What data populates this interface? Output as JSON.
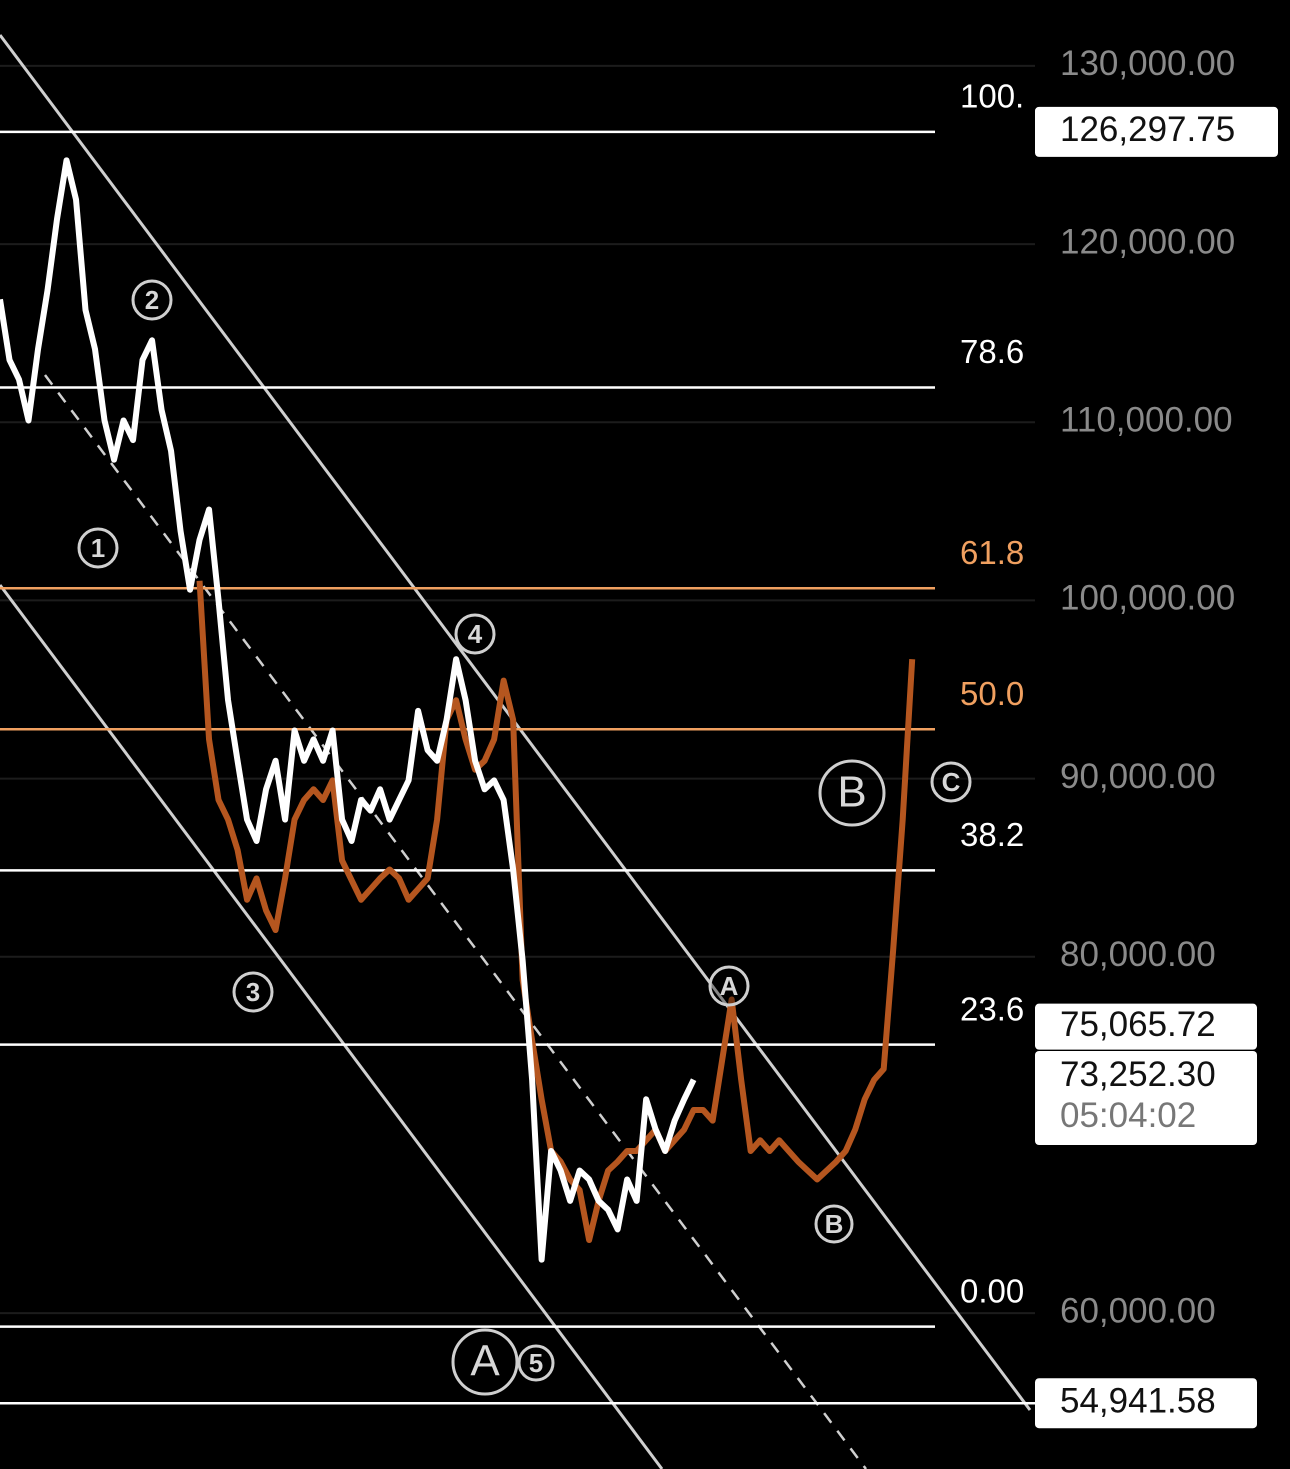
{
  "chart_data": {
    "type": "line",
    "ylim": [
      51250,
      133700
    ],
    "xlim": [
      0,
      98.4
    ],
    "grid": true,
    "yticks": [
      {
        "value": 130000,
        "label": "130,000.00"
      },
      {
        "value": 120000,
        "label": "120,000.00"
      },
      {
        "value": 110000,
        "label": "110,000.00"
      },
      {
        "value": 100000,
        "label": "100,000.00"
      },
      {
        "value": 90000,
        "label": "90,000.00"
      },
      {
        "value": 80000,
        "label": "80,000.00"
      },
      {
        "value": 60000,
        "label": "60,000.00"
      }
    ],
    "series": [
      {
        "color": "#ffffff",
        "x": [
          0,
          1,
          2,
          3,
          4,
          5,
          6,
          7,
          8,
          9,
          10,
          11,
          12,
          13,
          14,
          15,
          16,
          17,
          18,
          19,
          20,
          21,
          22,
          23,
          24,
          25,
          26,
          27,
          28,
          29,
          30,
          31,
          32,
          33,
          34,
          35,
          36,
          37,
          38,
          39,
          40,
          41,
          42,
          43,
          44,
          45,
          46,
          47,
          48,
          49,
          50,
          51,
          52,
          53,
          54,
          55,
          56,
          57,
          58,
          59,
          60,
          61,
          62,
          63,
          64,
          65,
          66,
          67,
          68,
          69,
          70,
          71,
          72,
          73
        ],
        "values": [
          116900,
          113500,
          112400,
          110100,
          114100,
          117400,
          121400,
          124700,
          122500,
          116300,
          114100,
          110100,
          107900,
          110100,
          109000,
          113500,
          114600,
          110700,
          108400,
          103900,
          100600,
          103400,
          105100,
          100000,
          94400,
          91000,
          87700,
          86500,
          89400,
          91000,
          87700,
          92700,
          91000,
          92200,
          91000,
          92700,
          87700,
          86500,
          88800,
          88200,
          89400,
          87700,
          88800,
          89900,
          93800,
          91600,
          91000,
          93300,
          96700,
          94400,
          91000,
          89400,
          89900,
          88800,
          84900,
          79800,
          73100,
          63000,
          69100,
          68000,
          66300,
          68000,
          67500,
          66300,
          65800,
          64700,
          67500,
          66300,
          72000,
          70300,
          69100,
          70800,
          72000,
          73100
        ]
      },
      {
        "color": "#b5561f",
        "x": [
          21,
          22,
          23,
          24,
          25,
          26,
          27,
          28,
          29,
          30,
          31,
          32,
          33,
          34,
          35,
          36,
          37,
          38,
          39,
          40,
          41,
          42,
          43,
          44,
          45,
          46,
          47,
          48,
          49,
          50,
          51,
          52,
          53,
          54,
          55,
          56,
          57,
          58,
          59,
          60,
          61,
          62,
          63,
          64,
          65,
          66,
          67,
          68,
          69,
          70,
          71,
          72,
          73,
          74,
          75,
          76,
          77,
          78,
          79,
          80,
          81,
          82,
          83,
          84,
          85,
          86,
          87,
          88,
          89,
          90,
          91,
          92,
          93,
          94,
          95,
          96
        ],
        "values": [
          101100,
          92200,
          88800,
          87700,
          86000,
          83200,
          84400,
          82600,
          81500,
          84400,
          87700,
          88800,
          89400,
          88800,
          89900,
          85400,
          84300,
          83200,
          83800,
          84400,
          84900,
          84400,
          83200,
          83800,
          84400,
          87700,
          93300,
          94400,
          92200,
          90500,
          91000,
          92200,
          95500,
          93300,
          78700,
          75300,
          72000,
          69100,
          68500,
          67500,
          66900,
          64100,
          66300,
          68000,
          68500,
          69100,
          69100,
          69700,
          70300,
          69100,
          69700,
          70300,
          71400,
          71400,
          70800,
          74200,
          77600,
          73100,
          69100,
          69700,
          69100,
          69700,
          69100,
          68500,
          68000,
          67500,
          68000,
          68500,
          69100,
          70300,
          72000,
          73100,
          73700,
          80400,
          87700,
          96700
        ]
      }
    ],
    "fib_levels": [
      {
        "value": 126297.75,
        "label": "100.",
        "color": "#ffffff"
      },
      {
        "value": 111950,
        "label": "78.6",
        "color": "#ffffff"
      },
      {
        "value": 100686,
        "label": "61.8",
        "color": "#f0a060"
      },
      {
        "value": 92769,
        "label": "50.0",
        "color": "#f0a060"
      },
      {
        "value": 84852,
        "label": "38.2",
        "color": "#ffffff"
      },
      {
        "value": 75065.72,
        "label": "23.6",
        "color": "#ffffff"
      },
      {
        "value": 59240,
        "label": "0.00",
        "color": "#ffffff"
      }
    ],
    "price_tags": [
      {
        "value": 126297.75,
        "label": "126,297.75"
      },
      {
        "value": 75065.72,
        "label": "75,065.72"
      },
      {
        "value": 73252.3,
        "label": "73,252.30",
        "time": "05:04:02"
      },
      {
        "value": 54941.58,
        "label": "54,941.58"
      }
    ],
    "annotations": [
      {
        "text": "1"
      },
      {
        "text": "2"
      },
      {
        "text": "3"
      },
      {
        "text": "4"
      },
      {
        "text": "5"
      },
      {
        "text": "A"
      },
      {
        "text": "B"
      },
      {
        "text": "C"
      },
      {
        "text": "A"
      },
      {
        "text": "B"
      }
    ]
  }
}
